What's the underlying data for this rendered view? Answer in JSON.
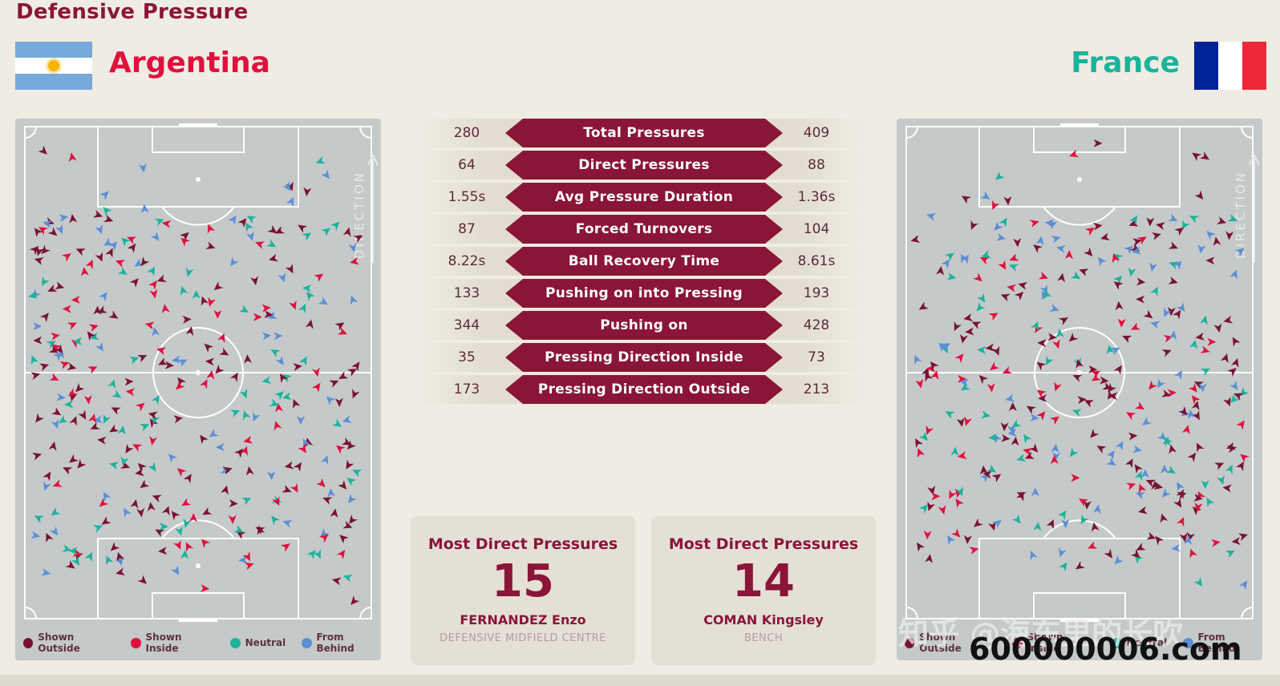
{
  "header": {
    "title": "Defensive Pressure",
    "home_team": "Argentina",
    "away_team": "France"
  },
  "colors": {
    "brand": "#8a1538",
    "shown_outside": "#7a1232",
    "shown_inside": "#e0103d",
    "neutral": "#1ab39c",
    "from_behind": "#5b8fd6",
    "home_name": "#e0103d",
    "away_name": "#1ab39c"
  },
  "pitch": {
    "direction_label": "DIRECTION"
  },
  "legend": [
    {
      "label": "Shown Outside",
      "color": "#7a1232"
    },
    {
      "label": "Shown Inside",
      "color": "#e0103d"
    },
    {
      "label": "Neutral",
      "color": "#1ab39c"
    },
    {
      "label": "From Behind",
      "color": "#5b8fd6"
    }
  ],
  "stats": [
    {
      "label": "Total Pressures",
      "home": "280",
      "away": "409"
    },
    {
      "label": "Direct Pressures",
      "home": "64",
      "away": "88"
    },
    {
      "label": "Avg Pressure Duration",
      "home": "1.55s",
      "away": "1.36s"
    },
    {
      "label": "Forced Turnovers",
      "home": "87",
      "away": "104"
    },
    {
      "label": "Ball Recovery Time",
      "home": "8.22s",
      "away": "8.61s"
    },
    {
      "label": "Pushing on into Pressing",
      "home": "133",
      "away": "193"
    },
    {
      "label": "Pushing on",
      "home": "344",
      "away": "428"
    },
    {
      "label": "Pressing Direction Inside",
      "home": "35",
      "away": "73"
    },
    {
      "label": "Pressing Direction Outside",
      "home": "173",
      "away": "213"
    }
  ],
  "cards": {
    "home": {
      "title": "Most Direct Pressures",
      "value": "15",
      "player": "FERNANDEZ Enzo",
      "position": "DEFENSIVE MIDFIELD CENTRE"
    },
    "away": {
      "title": "Most Direct Pressures",
      "value": "14",
      "player": "COMAN Kingsley",
      "position": "BENCH"
    }
  },
  "watermark": {
    "cn": "知乎 @海东里的长吹",
    "url": "600000006.com"
  }
}
